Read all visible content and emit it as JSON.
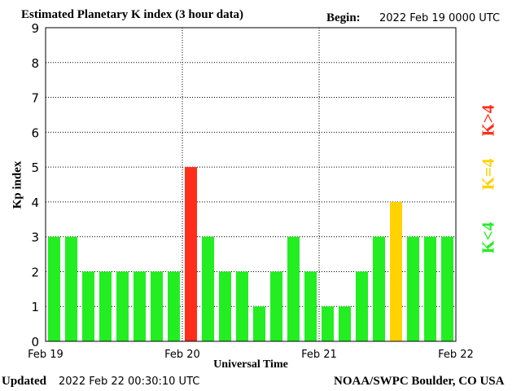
{
  "header": {
    "title": "Estimated Planetary K index (3 hour data)",
    "begin_label": "Begin:",
    "begin_value": "2022 Feb 19 0000 UTC"
  },
  "footer": {
    "updated_label": "Updated",
    "updated_value": "2022 Feb 22 00:30:10 UTC",
    "credit": "NOAA/SWPC Boulder, CO USA"
  },
  "legend": {
    "low": {
      "label": "K<4",
      "color": "#22ee22"
    },
    "equal": {
      "label": "K=4",
      "color": "#ffd200"
    },
    "high": {
      "label": "K>4",
      "color": "#ff2e1a"
    }
  },
  "chart_data": {
    "type": "bar",
    "ylabel": "Kp index",
    "xlabel": "Universal Time",
    "ylim": [
      0,
      9
    ],
    "yticks": [
      0,
      1,
      2,
      3,
      4,
      5,
      6,
      7,
      8,
      9
    ],
    "xticks": [
      "Feb 19",
      "Feb 20",
      "Feb 21",
      "Feb 22"
    ],
    "grid": true,
    "values": [
      3,
      3,
      2,
      2,
      2,
      2,
      2,
      2,
      5,
      3,
      2,
      2,
      1,
      2,
      3,
      2,
      1,
      1,
      2,
      3,
      4,
      3,
      3,
      3
    ]
  }
}
